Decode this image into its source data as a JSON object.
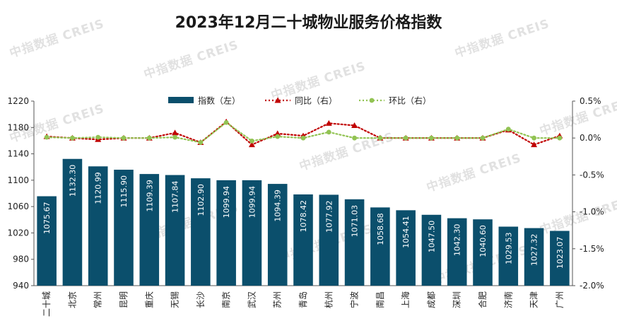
{
  "title": "2023年12月二十城物业服务价格指数",
  "watermark": "中指数据 CREIS",
  "chart_data": {
    "type": "bar",
    "title": "2023年12月二十城物业服务价格指数",
    "categories": [
      "二十城",
      "北京",
      "常州",
      "昆明",
      "重庆",
      "无锡",
      "长沙",
      "南京",
      "武汉",
      "苏州",
      "青岛",
      "杭州",
      "宁波",
      "南昌",
      "上海",
      "成都",
      "深圳",
      "合肥",
      "济南",
      "天津",
      "广州"
    ],
    "left_axis": {
      "ylim": [
        940,
        1220
      ],
      "ticks": [
        "1220",
        "1180",
        "1140",
        "1100",
        "1060",
        "1020",
        "980",
        "940"
      ]
    },
    "right_axis": {
      "ylim": [
        -2.0,
        0.5
      ],
      "ticks": [
        "0.5%",
        "0.0%",
        "-0.5%",
        "-1.0%",
        "-1.5%",
        "-2.0%"
      ]
    },
    "legend_position": "top",
    "series": [
      {
        "name": "指数（左）",
        "kind": "bar",
        "axis": "left",
        "color": "#0b4f6c",
        "values": [
          1075.67,
          1132.3,
          1120.99,
          1115.9,
          1109.39,
          1107.84,
          1102.9,
          1099.94,
          1099.94,
          1094.39,
          1078.42,
          1077.92,
          1071.03,
          1058.68,
          1054.41,
          1047.5,
          1042.3,
          1040.6,
          1029.53,
          1027.32,
          1023.07
        ],
        "labels": [
          "1075.67",
          "1132.30",
          "1120.99",
          "1115.90",
          "1109.39",
          "1107.84",
          "1102.90",
          "1099.94",
          "1099.94",
          "1094.39",
          "1078.42",
          "1077.92",
          "1071.03",
          "1058.68",
          "1054.41",
          "1047.50",
          "1042.30",
          "1040.60",
          "1029.53",
          "1027.32",
          "1023.07"
        ]
      },
      {
        "name": "同比（右）",
        "kind": "line",
        "axis": "right",
        "color": "#c00000",
        "marker": "triangle",
        "values": [
          0.02,
          0.0,
          -0.02,
          0.0,
          0.0,
          0.07,
          -0.06,
          0.22,
          -0.09,
          0.06,
          0.03,
          0.2,
          0.17,
          0.0,
          0.0,
          0.0,
          0.0,
          0.0,
          0.11,
          -0.09,
          0.03
        ]
      },
      {
        "name": "环比（右）",
        "kind": "line",
        "axis": "right",
        "color": "#92c353",
        "marker": "circle",
        "values": [
          0.01,
          0.0,
          0.01,
          0.0,
          0.0,
          0.01,
          -0.06,
          0.21,
          -0.04,
          0.02,
          0.0,
          0.08,
          0.0,
          0.0,
          0.0,
          0.0,
          0.0,
          0.0,
          0.12,
          0.0,
          0.0
        ]
      }
    ]
  }
}
